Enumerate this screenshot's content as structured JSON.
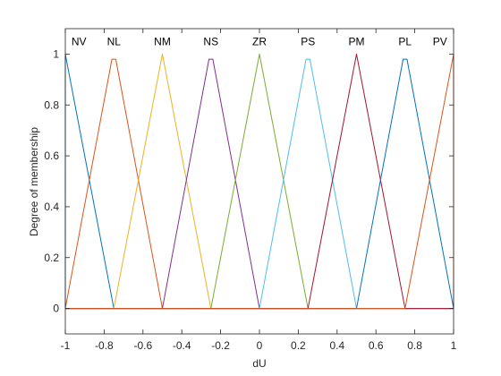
{
  "chart_data": {
    "type": "line",
    "xlabel": "dU",
    "ylabel": "Degree of membership",
    "xlim": [
      -1,
      1
    ],
    "ylim": [
      -0.1,
      1.1
    ],
    "xticks": [
      -1,
      -0.8,
      -0.6,
      -0.4,
      -0.2,
      0,
      0.2,
      0.4,
      0.6,
      0.8,
      1
    ],
    "xtick_labels": [
      "-1",
      "-0.8",
      "-0.6",
      "-0.4",
      "-0.2",
      "0",
      "0.2",
      "0.4",
      "0.6",
      "0.8",
      "1"
    ],
    "yticks": [
      0,
      0.2,
      0.4,
      0.6,
      0.8,
      1
    ],
    "ytick_labels": [
      "0",
      "0.2",
      "0.4",
      "0.6",
      "0.8",
      "1"
    ],
    "grid": false,
    "box": true,
    "series": [
      {
        "name": "NV",
        "color": "#0072BD",
        "x": [
          -1,
          -1,
          -0.75,
          1
        ],
        "y": [
          0,
          1,
          0,
          0
        ],
        "label_x": -0.93
      },
      {
        "name": "NL",
        "color": "#D95319",
        "x": [
          -1,
          -0.76,
          -0.74,
          -0.5,
          1
        ],
        "y": [
          0,
          0.98,
          0.98,
          0,
          0
        ],
        "label_x": -0.75
      },
      {
        "name": "NM",
        "color": "#EDB120",
        "x": [
          -1,
          -0.75,
          -0.5,
          -0.25,
          1
        ],
        "y": [
          0,
          0,
          1,
          0,
          0
        ],
        "label_x": -0.5
      },
      {
        "name": "NS",
        "color": "#7E2F8E",
        "x": [
          -1,
          -0.5,
          -0.26,
          -0.24,
          0,
          1
        ],
        "y": [
          0,
          0,
          0.98,
          0.98,
          0,
          0
        ],
        "label_x": -0.25
      },
      {
        "name": "ZR",
        "color": "#77AC30",
        "x": [
          -1,
          -0.25,
          0,
          0.25,
          1
        ],
        "y": [
          0,
          0,
          1,
          0,
          0
        ],
        "label_x": 0
      },
      {
        "name": "PS",
        "color": "#4DBEEE",
        "x": [
          -1,
          0,
          0.24,
          0.26,
          0.5,
          1
        ],
        "y": [
          0,
          0,
          0.98,
          0.98,
          0,
          0
        ],
        "label_x": 0.25
      },
      {
        "name": "PM",
        "color": "#A2142F",
        "x": [
          -1,
          0.25,
          0.5,
          0.75,
          1
        ],
        "y": [
          0,
          0,
          1,
          0,
          0
        ],
        "label_x": 0.5
      },
      {
        "name": "PL",
        "color": "#0072BD",
        "x": [
          -1,
          0.5,
          0.74,
          0.76,
          1
        ],
        "y": [
          0,
          0,
          0.98,
          0.98,
          0
        ],
        "label_x": 0.75
      },
      {
        "name": "PV",
        "color": "#D95319",
        "x": [
          -1,
          0.75,
          1,
          1
        ],
        "y": [
          0,
          0,
          1,
          0
        ],
        "label_x": 0.93
      }
    ]
  }
}
